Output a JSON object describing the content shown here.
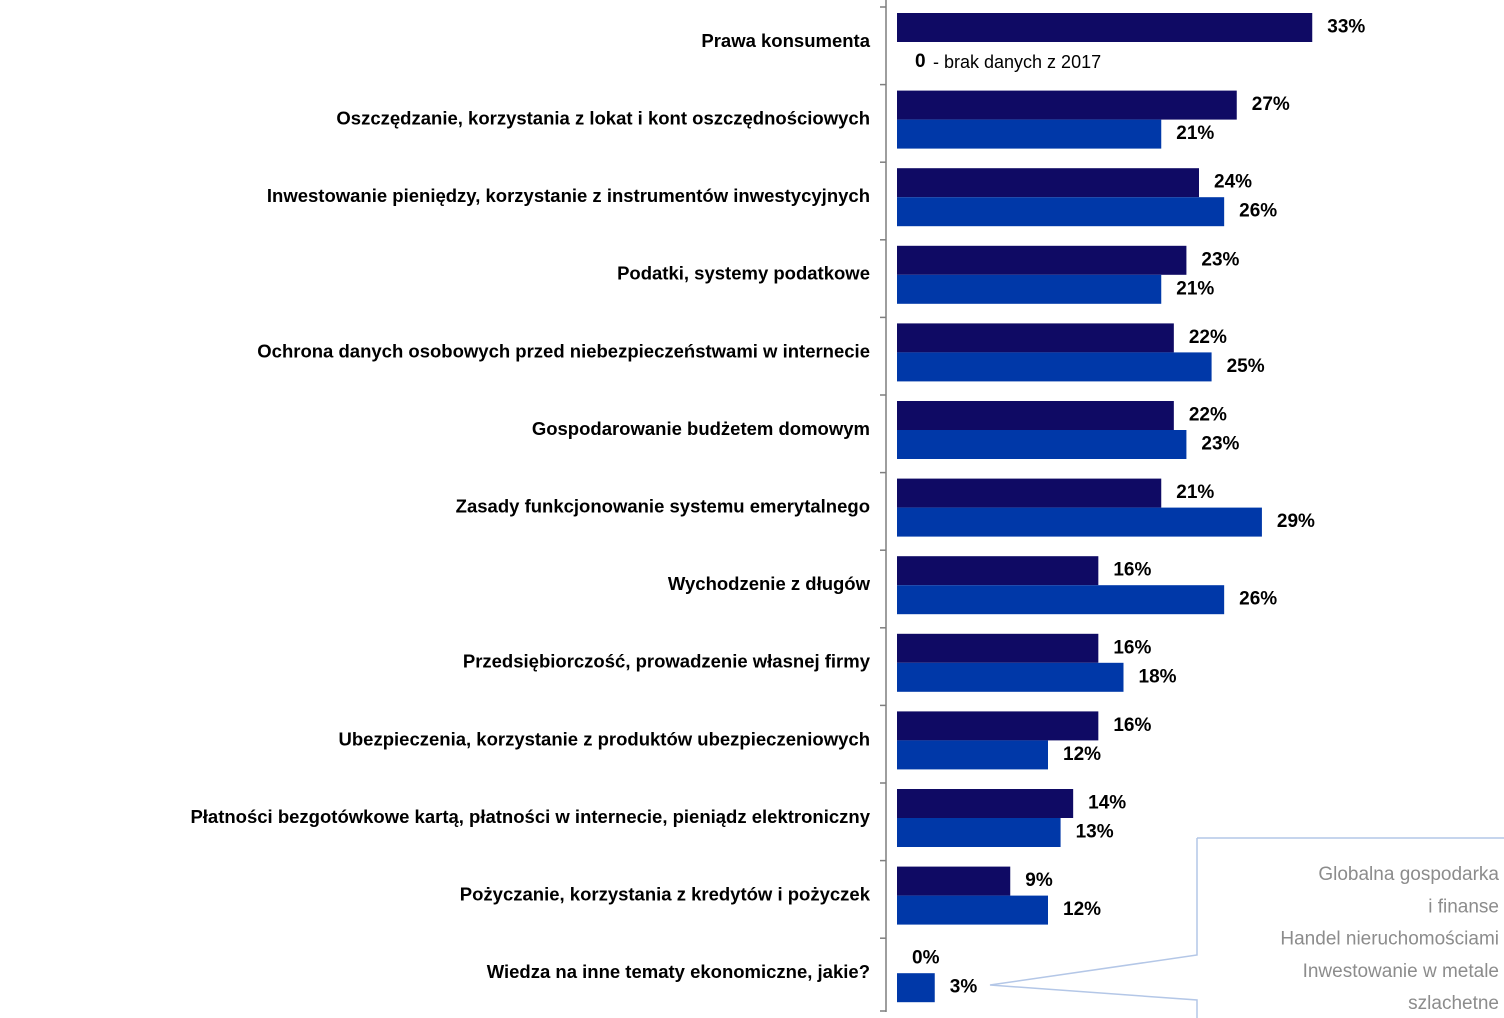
{
  "chart_data": {
    "type": "bar",
    "orientation": "horizontal",
    "categories": [
      "Prawa konsumenta",
      "Oszczędzanie, korzystania z lokat i kont oszczędnościowych",
      "Inwestowanie pieniędzy, korzystanie z instrumentów inwestycyjnych",
      "Podatki, systemy podatkowe",
      "Ochrona danych osobowych przed niebezpieczeństwami w internecie",
      "Gospodarowanie budżetem domowym",
      "Zasady funkcjonowanie systemu emerytalnego",
      "Wychodzenie z długów",
      "Przedsiębiorczość, prowadzenie własnej firmy",
      "Ubezpieczenia, korzystanie z produktów ubezpieczeniowych",
      "Płatności bezgotówkowe kartą, płatności w internecie, pieniądz elektroniczny",
      "Pożyczanie, korzystania z kredytów i pożyczek",
      "Wiedza na inne tematy ekonomiczne, jakie?"
    ],
    "series": [
      {
        "color": "#0f0a64",
        "values": [
          33,
          27,
          24,
          23,
          22,
          22,
          21,
          16,
          16,
          16,
          14,
          9,
          0
        ],
        "value_labels": [
          "33%",
          "27%",
          "24%",
          "23%",
          "22%",
          "22%",
          "21%",
          "16%",
          "16%",
          "16%",
          "14%",
          "9%",
          "0%"
        ]
      },
      {
        "color": "#0038a8",
        "values": [
          null,
          21,
          26,
          21,
          25,
          23,
          29,
          26,
          18,
          12,
          13,
          12,
          3
        ],
        "value_labels": [
          null,
          "21%",
          "26%",
          "21%",
          "25%",
          "23%",
          "29%",
          "26%",
          "18%",
          "12%",
          "13%",
          "12%",
          "3%"
        ]
      }
    ],
    "xlim": [
      0,
      48
    ],
    "note_value": "0",
    "note": "- brak danych z 2017",
    "callout": [
      "Globalna gospodarka",
      "i finanse",
      "Handel nieruchomościami",
      "Inwestowanie w metale",
      "szlachetne"
    ]
  }
}
